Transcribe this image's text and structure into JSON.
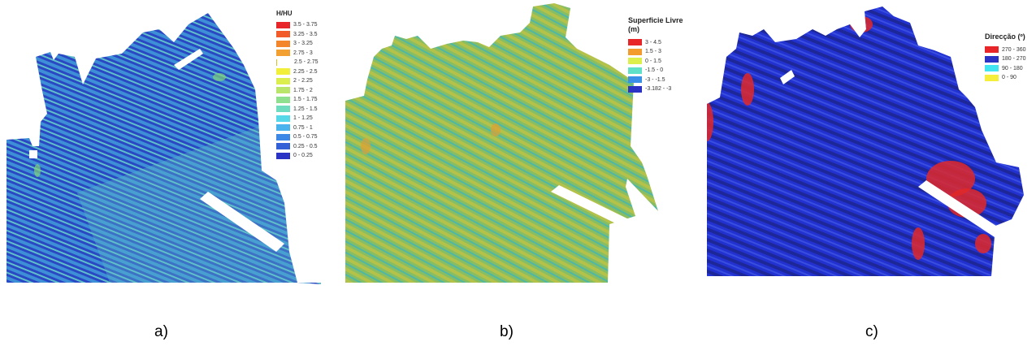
{
  "panels": [
    {
      "id": "a",
      "caption": "a)",
      "legend_title": "H/HU",
      "base_color": "#2b48c4",
      "stripe_colors": [
        "#3d8fd6",
        "#5ec1c9"
      ],
      "accent_color": "#7fd27a",
      "legend": [
        {
          "label": "3.5 - 3.75",
          "color": "#e8262a"
        },
        {
          "label": "3.25 - 3.5",
          "color": "#f25b2a"
        },
        {
          "label": "3 - 3.25",
          "color": "#f3852d"
        },
        {
          "label": "2.75 - 3",
          "color": "#f2a032"
        },
        {
          "label": "2.5 - 2.75",
          "color": "#ffffff"
        },
        {
          "label": "2.25 - 2.5",
          "color": "#f2ef3a"
        },
        {
          "label": "2 - 2.25",
          "color": "#dcee4e"
        },
        {
          "label": "1.75 - 2",
          "color": "#b8e56a"
        },
        {
          "label": "1.5 - 1.75",
          "color": "#8fe08e"
        },
        {
          "label": "1.25 - 1.5",
          "color": "#6fdcc0"
        },
        {
          "label": "1 - 1.25",
          "color": "#56d8e8"
        },
        {
          "label": "0.75 - 1",
          "color": "#4ab3ee"
        },
        {
          "label": "0.5 - 0.75",
          "color": "#3d88e6"
        },
        {
          "label": "0.25 - 0.5",
          "color": "#3360d6"
        },
        {
          "label": "0 - 0.25",
          "color": "#2a33c4"
        }
      ]
    },
    {
      "id": "b",
      "caption": "b)",
      "legend_title": "Superficie Livre (m)",
      "base_color": "#8fbf5a",
      "stripe_colors": [
        "#c2c43e",
        "#4fb8a6"
      ],
      "accent_color": "#e0a033",
      "legend": [
        {
          "label": "3 - 4.5",
          "color": "#e8262a"
        },
        {
          "label": "1.5 - 3",
          "color": "#f39c2d"
        },
        {
          "label": "0 - 1.5",
          "color": "#dcef4a"
        },
        {
          "label": "-1.5 - 0",
          "color": "#5fe0c8"
        },
        {
          "label": "-3 - -1.5",
          "color": "#3a8fe6"
        },
        {
          "label": "-3.182 - -3",
          "color": "#2a33c4"
        }
      ]
    },
    {
      "id": "c",
      "caption": "c)",
      "legend_title": "Direcção (º)",
      "base_color": "#1f2fcf",
      "stripe_colors": [
        "#1a238f",
        "#3a4ee0"
      ],
      "accent_color": "#e02828",
      "legend": [
        {
          "label": "270 - 360",
          "color": "#e8262a"
        },
        {
          "label": "180 - 270",
          "color": "#2a33c4"
        },
        {
          "label": "90 - 180",
          "color": "#3fe5f0"
        },
        {
          "label": "0 - 90",
          "color": "#f5ee3a"
        }
      ]
    }
  ]
}
